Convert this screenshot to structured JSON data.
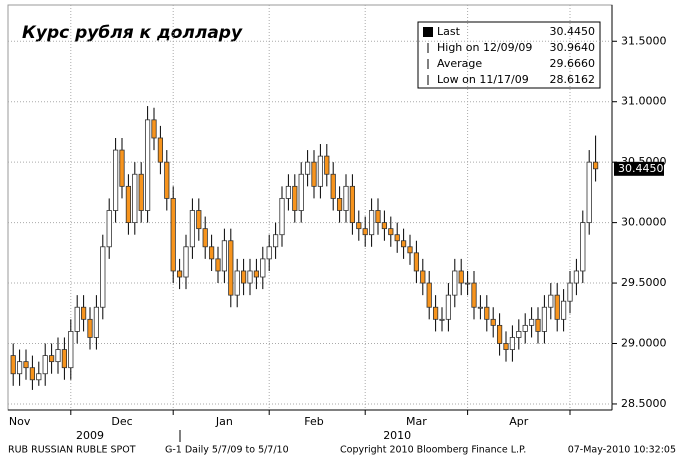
{
  "chart_data": {
    "type": "candlestick",
    "title": "Курс рубля к доллару",
    "open": [
      28.9,
      28.75,
      28.85,
      28.8,
      28.7,
      28.75,
      28.9,
      28.85,
      28.95,
      28.8,
      29.1,
      29.3,
      29.2,
      29.05,
      29.3,
      29.8,
      30.1,
      30.6,
      30.3,
      30.0,
      30.4,
      30.1,
      30.85,
      30.7,
      30.5,
      30.2,
      29.6,
      29.55,
      29.8,
      30.1,
      29.95,
      29.8,
      29.7,
      29.6,
      29.85,
      29.4,
      29.6,
      29.5,
      29.6,
      29.55,
      29.7,
      29.8,
      29.9,
      30.2,
      30.3,
      30.1,
      30.4,
      30.5,
      30.3,
      30.55,
      30.4,
      30.2,
      30.1,
      30.3,
      30.0,
      29.95,
      29.9,
      30.1,
      30.0,
      29.95,
      29.9,
      29.85,
      29.8,
      29.75,
      29.6,
      29.5,
      29.3,
      29.2,
      29.2,
      29.4,
      29.6,
      29.5,
      29.5,
      29.3,
      29.3,
      29.2,
      29.15,
      29.0,
      28.95,
      29.05,
      29.1,
      29.15,
      29.2,
      29.1,
      29.3,
      29.4,
      29.2,
      29.35,
      29.5,
      29.6,
      30.0,
      30.5
    ],
    "high": [
      29.0,
      28.95,
      28.95,
      28.9,
      28.85,
      29.0,
      29.0,
      29.05,
      29.05,
      29.2,
      29.4,
      29.4,
      29.3,
      29.4,
      29.9,
      30.2,
      30.7,
      30.7,
      30.4,
      30.5,
      30.5,
      30.964,
      30.95,
      30.8,
      30.6,
      30.3,
      29.7,
      29.9,
      30.2,
      30.2,
      30.05,
      29.9,
      29.8,
      29.95,
      29.95,
      29.7,
      29.7,
      29.7,
      29.7,
      29.8,
      29.9,
      30.0,
      30.3,
      30.4,
      30.4,
      30.5,
      30.6,
      30.6,
      30.65,
      30.65,
      30.5,
      30.3,
      30.4,
      30.4,
      30.1,
      30.05,
      30.2,
      30.2,
      30.1,
      30.05,
      30.0,
      29.95,
      29.9,
      29.85,
      29.7,
      29.6,
      29.4,
      29.3,
      29.5,
      29.7,
      29.7,
      29.6,
      29.6,
      29.4,
      29.4,
      29.3,
      29.25,
      29.1,
      29.15,
      29.2,
      29.25,
      29.3,
      29.3,
      29.4,
      29.5,
      29.5,
      29.45,
      29.6,
      29.7,
      30.1,
      30.6,
      30.72
    ],
    "low": [
      28.65,
      28.65,
      28.7,
      28.6162,
      28.65,
      28.65,
      28.75,
      28.75,
      28.7,
      28.7,
      29.0,
      29.1,
      28.95,
      28.95,
      29.2,
      29.7,
      30.0,
      30.2,
      29.9,
      29.9,
      30.0,
      30.0,
      30.6,
      30.4,
      30.1,
      29.5,
      29.45,
      29.45,
      29.7,
      29.85,
      29.7,
      29.6,
      29.5,
      29.5,
      29.3,
      29.3,
      29.4,
      29.4,
      29.45,
      29.45,
      29.6,
      29.7,
      29.8,
      30.1,
      30.0,
      30.0,
      30.3,
      30.2,
      30.2,
      30.3,
      30.1,
      30.0,
      30.0,
      29.9,
      29.85,
      29.8,
      29.8,
      29.9,
      29.85,
      29.8,
      29.75,
      29.7,
      29.65,
      29.5,
      29.4,
      29.2,
      29.1,
      29.1,
      29.1,
      29.3,
      29.4,
      29.4,
      29.2,
      29.2,
      29.1,
      29.05,
      28.9,
      28.85,
      28.85,
      28.95,
      29.0,
      29.05,
      29.0,
      29.0,
      29.2,
      29.1,
      29.1,
      29.25,
      29.4,
      29.5,
      29.9,
      30.34
    ],
    "close": [
      28.75,
      28.85,
      28.8,
      28.7,
      28.75,
      28.9,
      28.85,
      28.95,
      28.8,
      29.1,
      29.3,
      29.2,
      29.05,
      29.3,
      29.8,
      30.1,
      30.6,
      30.3,
      30.0,
      30.4,
      30.1,
      30.85,
      30.7,
      30.5,
      30.2,
      29.6,
      29.55,
      29.8,
      30.1,
      29.95,
      29.8,
      29.7,
      29.6,
      29.85,
      29.4,
      29.6,
      29.5,
      29.6,
      29.55,
      29.7,
      29.8,
      29.9,
      30.2,
      30.3,
      30.1,
      30.4,
      30.5,
      30.3,
      30.55,
      30.4,
      30.2,
      30.1,
      30.3,
      30.0,
      29.95,
      29.9,
      30.1,
      30.0,
      29.95,
      29.9,
      29.85,
      29.8,
      29.75,
      29.6,
      29.5,
      29.3,
      29.2,
      29.2,
      29.4,
      29.6,
      29.5,
      29.5,
      29.3,
      29.3,
      29.2,
      29.15,
      29.0,
      28.95,
      29.05,
      29.1,
      29.15,
      29.2,
      29.1,
      29.3,
      29.4,
      29.2,
      29.35,
      29.5,
      29.6,
      30.0,
      30.5,
      30.445
    ],
    "up_color": "#ffffff",
    "down_color": "#f7941d",
    "ylim": [
      28.45,
      31.8
    ],
    "yticks": [
      {
        "value": 28.5,
        "label": "28.5000"
      },
      {
        "value": 29,
        "label": "29.0000"
      },
      {
        "value": 29.5,
        "label": "29.5000"
      },
      {
        "value": 30,
        "label": "30.0000"
      },
      {
        "value": 30.5,
        "label": "30.5000"
      },
      {
        "value": 31,
        "label": "31.0000"
      },
      {
        "value": 31.5,
        "label": "31.5000"
      }
    ],
    "xticks": [
      {
        "value": 1,
        "label": "Nov"
      },
      {
        "value": 17,
        "label": "Dec"
      },
      {
        "value": 33,
        "label": "Jan"
      },
      {
        "value": 47,
        "label": "Feb"
      },
      {
        "value": 63,
        "label": "Mar"
      },
      {
        "value": 79,
        "label": "Apr"
      }
    ],
    "years": [
      {
        "value": 12,
        "label": "2009"
      },
      {
        "value": 60,
        "label": "2010"
      }
    ],
    "grid": true,
    "last": 30.445,
    "last_label": "30.4450",
    "legend": [
      {
        "name": "Last",
        "value_label": "30.4450"
      },
      {
        "name": "High on 12/09/09",
        "value_label": "30.9640"
      },
      {
        "name": "Average",
        "value_label": "29.6660"
      },
      {
        "name": "Low on 11/17/09",
        "value_label": "28.6162"
      }
    ],
    "footer": [
      "RUB  RUSSIAN RUBLE SPOT",
      "G-1  Daily  5/7/09 to 5/7/10",
      "Copyright 2010 Bloomberg Finance L.P.",
      "07-May-2010 10:32:05"
    ]
  }
}
